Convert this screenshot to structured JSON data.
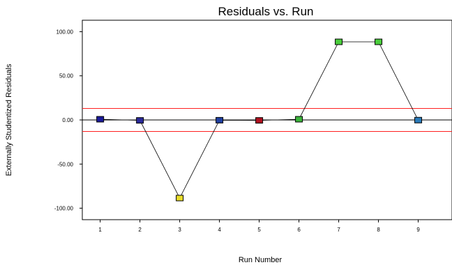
{
  "chart_data": {
    "type": "scatter",
    "title": "Residuals vs. Run",
    "xlabel": "Run Number",
    "ylabel": "Externally Studentized Residuals",
    "x": [
      1,
      2,
      3,
      4,
      5,
      6,
      7,
      8,
      9
    ],
    "x_ticks": [
      "1",
      "2",
      "3",
      "4",
      "5",
      "6",
      "7",
      "8",
      "9"
    ],
    "y_ticks": [
      "-100.00",
      "-50.00",
      "0.00",
      "50.00",
      "100.00"
    ],
    "xlim": [
      0.55,
      9.85
    ],
    "ylim": [
      -113,
      113
    ],
    "series": [
      {
        "values": [
          0.8,
          -0.5,
          -88.5,
          -0.3,
          -0.5,
          0.8,
          88.5,
          88.5,
          -0.2
        ],
        "marker_colors": [
          "#1a1a9a",
          "#2a2a9a",
          "#e8dc2a",
          "#1f3fa0",
          "#b01020",
          "#3cb43c",
          "#4acd3c",
          "#4acd3c",
          "#2a7ab8"
        ],
        "line_color": "#000000",
        "marker": "square"
      }
    ],
    "reference_lines": [
      {
        "y": 13.0,
        "color": "#ff2020"
      },
      {
        "y": -13.0,
        "color": "#ff2020"
      },
      {
        "y": 0.0,
        "color": "#000000"
      }
    ],
    "grid": false,
    "legend": false
  }
}
